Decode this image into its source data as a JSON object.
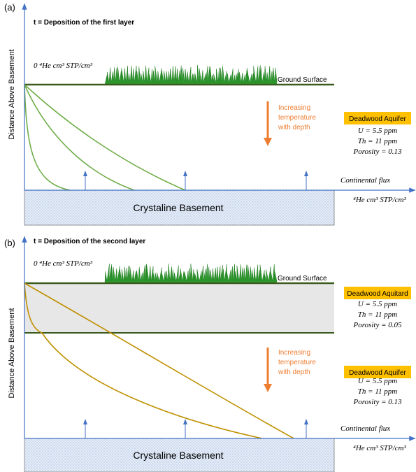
{
  "panels": [
    {
      "label": "(a)",
      "title": "t = Deposition of the first layer",
      "y_axis_label": "Distance Above Basement",
      "origin_label": "0 ⁴He cm³ STP/cm³",
      "ground_label": "Ground Surface",
      "temperature_note": [
        "Increasing",
        "temperature",
        "with depth"
      ],
      "units": [
        {
          "name": "Deadwood Aquifer",
          "properties": [
            "U = 5.5 ppm",
            "Th = 11 ppm",
            "Porosity = 0.13"
          ]
        }
      ],
      "flux_label": "Continental flux",
      "x_axis_label": "⁴He cm³ STP/cm³",
      "basement_label": "Crystaline Basement"
    },
    {
      "label": "(b)",
      "title": "t = Deposition of the second layer",
      "y_axis_label": "Distance Above Basement",
      "origin_label": "0 ⁴He cm³ STP/cm³",
      "ground_label": "Ground Surface",
      "temperature_note": [
        "Increasing",
        "temperature",
        "with depth"
      ],
      "units": [
        {
          "name": "Deadwood Aquitard",
          "properties": [
            "U = 5.5 ppm",
            "Th = 11 ppm",
            "Porosity = 0.05"
          ]
        },
        {
          "name": "Deadwood Aquifer",
          "properties": [
            "U = 5.5 ppm",
            "Th = 11 ppm",
            "Porosity = 0.13"
          ]
        }
      ],
      "flux_label": "Continental flux",
      "x_axis_label": "⁴He cm³ STP/cm³",
      "basement_label": "Crystaline Basement"
    }
  ]
}
